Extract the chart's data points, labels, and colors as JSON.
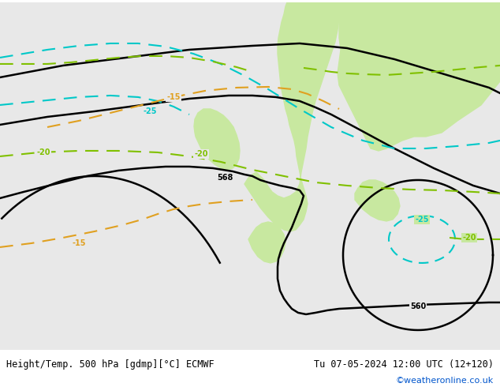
{
  "title_left": "Height/Temp. 500 hPa [gdmp][°C] ECMWF",
  "title_right": "Tu 07-05-2024 12:00 UTC (12+120)",
  "credit": "©weatheronline.co.uk",
  "background_color": "#e8e8e8",
  "land_green_color": "#c8e8a0",
  "land_gray_color": "#d0d0d0",
  "contour_black_color": "#000000",
  "contour_cyan_color": "#00c8c8",
  "contour_green_color": "#80c000",
  "contour_orange_color": "#e0a020",
  "font_size_labels": 8,
  "font_size_title": 9,
  "figsize": [
    6.34,
    4.9
  ],
  "dpi": 100
}
